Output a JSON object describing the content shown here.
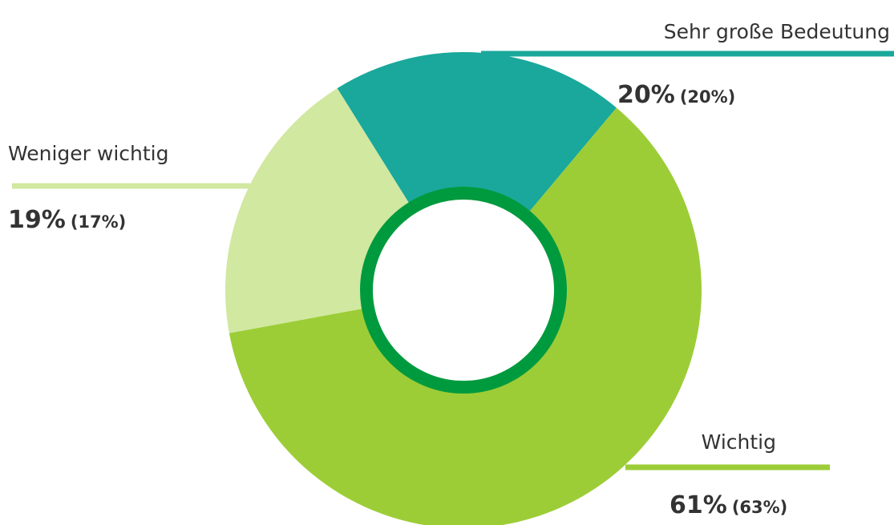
{
  "chart_data": {
    "type": "donut",
    "categories": [
      "Sehr große Bedeutung",
      "Wichtig",
      "Weniger wichtig"
    ],
    "values": [
      20,
      61,
      19
    ],
    "value_labels": [
      "20%",
      "61%",
      "19%"
    ],
    "previous_labels": [
      "(20%)",
      "(63%)",
      "(17%)"
    ],
    "colors": [
      "#19a89b",
      "#9ccd37",
      "#d0e8a0"
    ],
    "ring_color": "#009a3e"
  }
}
